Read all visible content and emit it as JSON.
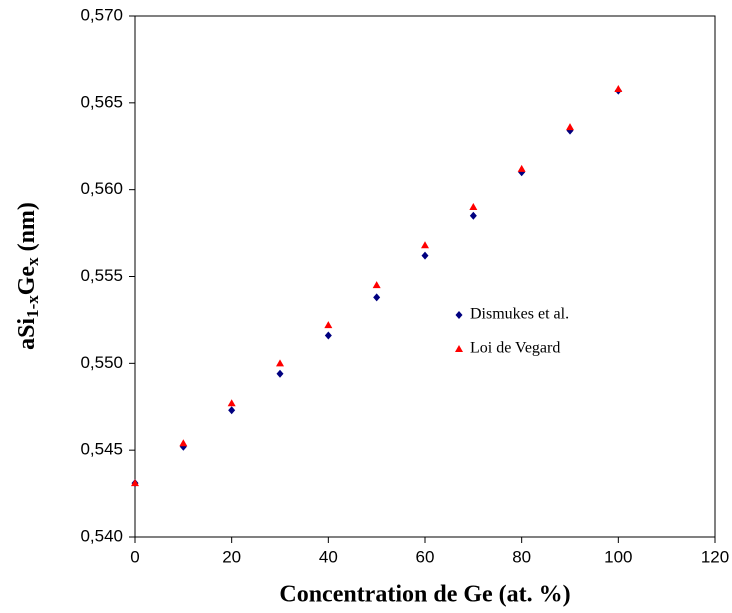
{
  "chart_data": {
    "type": "scatter",
    "xlabel": "Concentration de Ge (at. %)",
    "ylabel": [
      "aSi",
      "1-x",
      "Ge",
      "x",
      " (nm)"
    ],
    "x": [
      0,
      10,
      20,
      30,
      40,
      50,
      60,
      70,
      80,
      90,
      100
    ],
    "series": [
      {
        "name": "Dismukes et al.",
        "color": "#000080",
        "marker": "diamond",
        "values": [
          0.5431,
          0.5452,
          0.5473,
          0.5494,
          0.5516,
          0.5538,
          0.5562,
          0.5585,
          0.561,
          0.5634,
          0.5657
        ]
      },
      {
        "name": "Loi de Vegard",
        "color": "#ff0000",
        "marker": "triangle",
        "values": [
          0.5431,
          0.5454,
          0.5477,
          0.55,
          0.5522,
          0.5545,
          0.5568,
          0.559,
          0.5612,
          0.5636,
          0.5658
        ]
      }
    ],
    "xlim": [
      0,
      120
    ],
    "xticks": [
      0,
      20,
      40,
      60,
      80,
      100,
      120
    ],
    "ylim": [
      0.54,
      0.57
    ],
    "yticks": [
      {
        "value": 0.54,
        "label": "0,540"
      },
      {
        "value": 0.545,
        "label": "0,545"
      },
      {
        "value": 0.55,
        "label": "0,550"
      },
      {
        "value": 0.555,
        "label": "0,555"
      },
      {
        "value": 0.56,
        "label": "0,560"
      },
      {
        "value": 0.565,
        "label": "0,565"
      },
      {
        "value": 0.57,
        "label": "0,570"
      }
    ],
    "grid": false
  }
}
